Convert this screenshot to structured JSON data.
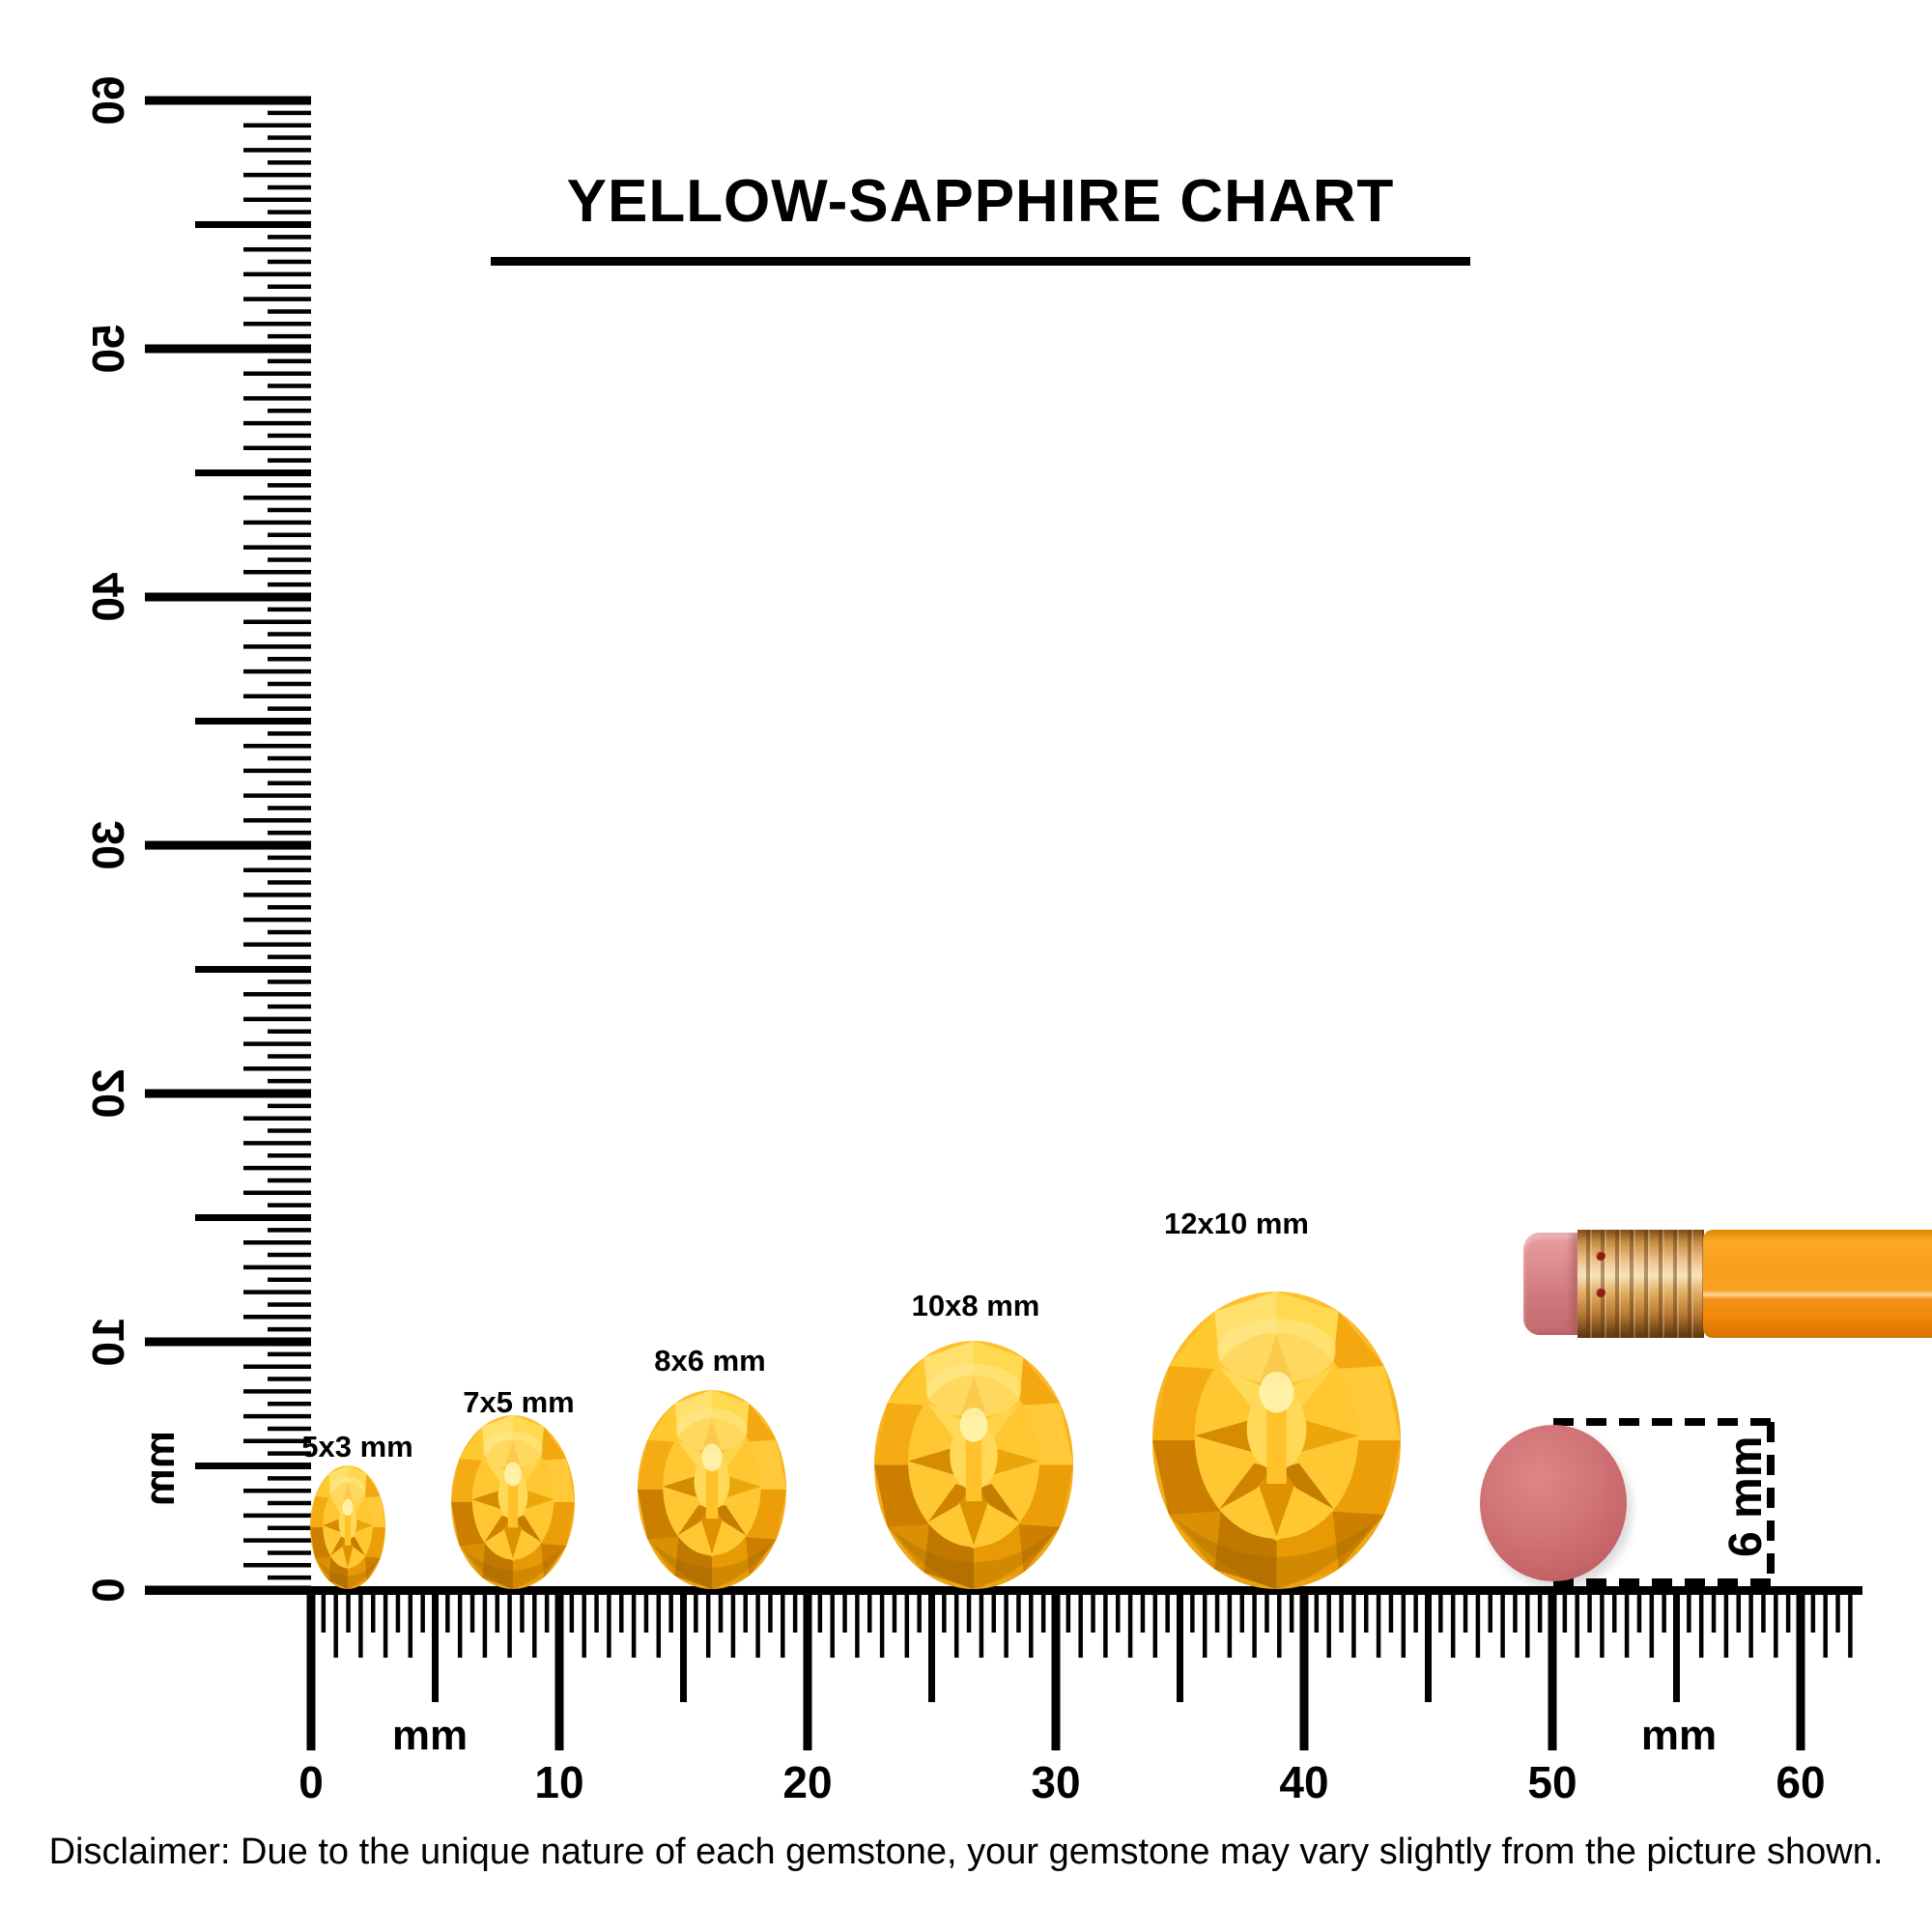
{
  "title": "YELLOW-SAPPHIRE CHART",
  "rulers": {
    "vertical": {
      "unit": "mm",
      "labels": [
        "0",
        "10",
        "20",
        "30",
        "40",
        "50",
        "60"
      ]
    },
    "horizontal": {
      "unit_left": "mm",
      "unit_right": "mm",
      "labels": [
        "0",
        "10",
        "20",
        "30",
        "40",
        "50",
        "60"
      ]
    }
  },
  "gems": [
    {
      "label": "5x3 mm"
    },
    {
      "label": "7x5 mm"
    },
    {
      "label": "8x6 mm"
    },
    {
      "label": "10x8 mm"
    },
    {
      "label": "12x10 mm"
    }
  ],
  "reference": {
    "eraser_diameter_label": "6 mm"
  },
  "disclaimer": "Disclaimer: Due to the unique nature of each gemstone, your gemstone may vary slightly from the picture shown.",
  "colors": {
    "ink": "#000000",
    "gem_gold": "#FFC52E",
    "gem_dark_facet": "#C87F00",
    "gem_highlight": "#FFE37A",
    "pencil_orange": "#F8991D",
    "eraser_pink": "#D5797D",
    "ferrule_copper": "#D99C52",
    "eraser_circle_red": "#CB6B6E"
  },
  "chart_data": {
    "type": "table",
    "title": "YELLOW-SAPPHIRE CHART",
    "unit": "mm",
    "oval_gem_sizes_mm": [
      [
        5,
        3
      ],
      [
        7,
        5
      ],
      [
        8,
        6
      ],
      [
        10,
        8
      ],
      [
        12,
        10
      ]
    ],
    "reference_object_diameter_mm": 6,
    "axis_range_mm": [
      0,
      60
    ]
  }
}
